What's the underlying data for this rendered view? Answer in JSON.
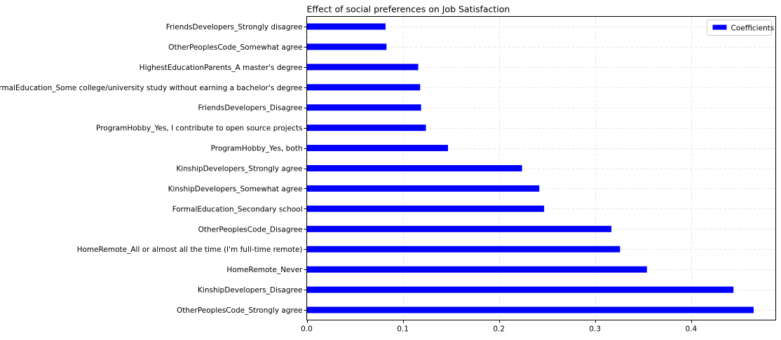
{
  "chart_data": {
    "type": "bar",
    "orientation": "horizontal",
    "title": "Effect of social preferences on Job Satisfaction",
    "xlabel": "",
    "ylabel": "",
    "categories": [
      "OtherPeoplesCode_Strongly agree",
      "KinshipDevelopers_Disagree",
      "HomeRemote_Never",
      "HomeRemote_All or almost all the time (I'm full-time remote)",
      "OtherPeoplesCode_Disagree",
      "FormalEducation_Secondary school",
      "KinshipDevelopers_Somewhat agree",
      "KinshipDevelopers_Strongly agree",
      "ProgramHobby_Yes, both",
      "ProgramHobby_Yes, I contribute to open source projects",
      "FriendsDevelopers_Disagree",
      "FormalEducation_Some college/university study without earning a bachelor's degree",
      "HighestEducationParents_A master's degree",
      "OtherPeoplesCode_Somewhat agree",
      "FriendsDevelopers_Strongly disagree"
    ],
    "series": [
      {
        "name": "Coefficients",
        "color": "#0000ff",
        "values": [
          0.465,
          0.444,
          0.354,
          0.326,
          0.317,
          0.247,
          0.242,
          0.224,
          0.147,
          0.124,
          0.119,
          0.118,
          0.116,
          0.083,
          0.082
        ]
      }
    ],
    "xlim": [
      0,
      0.488
    ],
    "xticks": [
      0,
      0.1,
      0.2,
      0.3,
      0.4
    ],
    "xtick_labels": [
      "0.0",
      "0.1",
      "0.2",
      "0.3",
      "0.4"
    ],
    "grid": true,
    "legend_position": "top-right"
  }
}
